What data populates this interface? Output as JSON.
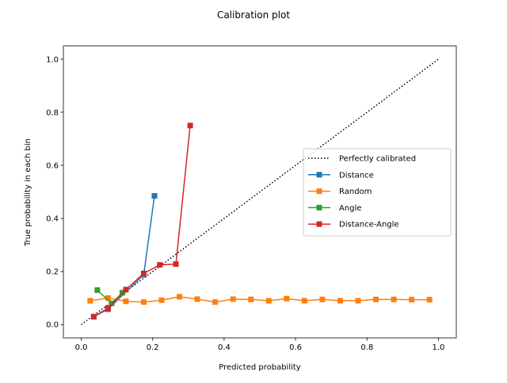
{
  "chart_data": {
    "type": "line",
    "title": "Calibration plot",
    "xlabel": "Predicted probability",
    "ylabel": "True probability in each bin",
    "xlim": [
      -0.05,
      1.05
    ],
    "ylim": [
      -0.05,
      1.05
    ],
    "xticks": [
      "0.0",
      "0.2",
      "0.4",
      "0.6",
      "0.8",
      "1.0"
    ],
    "yticks": [
      "0.0",
      "0.2",
      "0.4",
      "0.6",
      "0.8",
      "1.0"
    ],
    "grid": false,
    "legend_position": "center-right",
    "reference": {
      "name": "Perfectly calibrated",
      "x": [
        0,
        1
      ],
      "y": [
        0,
        1
      ],
      "color": "#000000",
      "style": "dotted"
    },
    "series": [
      {
        "name": "Distance",
        "color": "#1f77b4",
        "x": [
          0.035,
          0.075,
          0.175,
          0.205
        ],
        "y": [
          0.03,
          0.058,
          0.188,
          0.485
        ]
      },
      {
        "name": "Random",
        "color": "#ff7f0e",
        "x": [
          0.025,
          0.075,
          0.125,
          0.175,
          0.225,
          0.275,
          0.325,
          0.375,
          0.425,
          0.475,
          0.525,
          0.575,
          0.625,
          0.675,
          0.725,
          0.775,
          0.825,
          0.875,
          0.925,
          0.975
        ],
        "y": [
          0.09,
          0.1,
          0.088,
          0.085,
          0.092,
          0.105,
          0.096,
          0.085,
          0.096,
          0.095,
          0.09,
          0.098,
          0.09,
          0.095,
          0.09,
          0.09,
          0.095,
          0.095,
          0.094,
          0.094
        ]
      },
      {
        "name": "Angle",
        "color": "#2ca02c",
        "x": [
          0.045,
          0.085,
          0.115
        ],
        "y": [
          0.13,
          0.08,
          0.12
        ]
      },
      {
        "name": "Distance-Angle",
        "color": "#d62728",
        "x": [
          0.035,
          0.075,
          0.125,
          0.175,
          0.22,
          0.265,
          0.305
        ],
        "y": [
          0.03,
          0.062,
          0.132,
          0.193,
          0.225,
          0.228,
          0.75
        ]
      }
    ]
  }
}
